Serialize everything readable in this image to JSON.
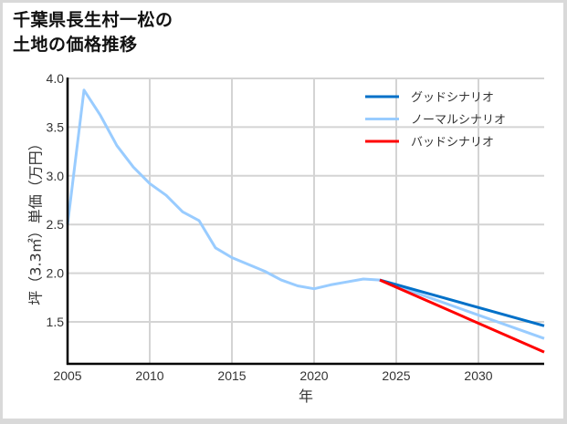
{
  "title_line1": "千葉県長生村一松の",
  "title_line2": "土地の価格推移",
  "chart_data": {
    "type": "line",
    "title": "千葉県長生村一松の土地の価格推移",
    "xlabel": "年",
    "ylabel": "坪（3.3㎡）単価（万円）",
    "xlim": [
      2005,
      2034
    ],
    "ylim": [
      1.2,
      4.0
    ],
    "x_ticks": [
      "2005",
      "2010",
      "2015",
      "2020",
      "2025",
      "2030"
    ],
    "y_ticks": [
      "1.5",
      "2.0",
      "2.5",
      "3.0",
      "3.5",
      "4.0"
    ],
    "grid": true,
    "legend_position": "upper right",
    "series": [
      {
        "name": "グッドシナリオ",
        "color": "#0070c8",
        "x": [
          2024,
          2034
        ],
        "values": [
          1.93,
          1.46
        ]
      },
      {
        "name": "ノーマルシナリオ",
        "color": "#99ccff",
        "x": [
          2005,
          2006,
          2007,
          2008,
          2009,
          2010,
          2011,
          2012,
          2013,
          2014,
          2015,
          2016,
          2017,
          2018,
          2019,
          2020,
          2021,
          2022,
          2023,
          2024,
          2034
        ],
        "values": [
          2.5,
          3.88,
          3.62,
          3.31,
          3.09,
          2.92,
          2.8,
          2.63,
          2.54,
          2.26,
          2.16,
          2.09,
          2.02,
          1.93,
          1.87,
          1.84,
          1.88,
          1.91,
          1.94,
          1.93,
          1.33
        ]
      },
      {
        "name": "バッドシナリオ",
        "color": "#ff0000",
        "x": [
          2024,
          2034
        ],
        "values": [
          1.93,
          1.19
        ]
      }
    ]
  }
}
